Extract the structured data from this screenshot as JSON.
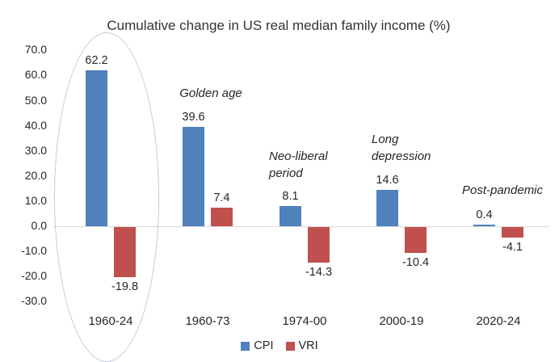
{
  "chart_data": {
    "type": "bar",
    "title": "Cumulative change in US real median family income (%)",
    "categories": [
      "1960-24",
      "1960-73",
      "1974-00",
      "2000-19",
      "2020-24"
    ],
    "series": [
      {
        "name": "CPI",
        "color": "#4F81BD",
        "values": [
          62.2,
          39.6,
          8.1,
          14.6,
          0.4
        ]
      },
      {
        "name": "VRI",
        "color": "#C0504D",
        "values": [
          -19.8,
          7.4,
          -14.3,
          -10.4,
          -4.1
        ]
      }
    ],
    "yticks": [
      "70.0",
      "60.0",
      "50.0",
      "40.0",
      "30.0",
      "20.0",
      "10.0",
      "0.0",
      "-10.0",
      "-20.0",
      "-30.0"
    ],
    "ylim": [
      -30,
      70
    ],
    "gridlines": "zero-line-only",
    "gridline_color": "#D9D9D9",
    "annotations": [
      {
        "category": "1960-73",
        "lines": [
          "Golden age"
        ]
      },
      {
        "category": "1974-00",
        "lines": [
          "Neo-liberal",
          "period"
        ]
      },
      {
        "category": "2000-19",
        "lines": [
          "Long",
          "depression"
        ]
      },
      {
        "category": "2020-24",
        "lines": [
          "Post-pandemic"
        ]
      }
    ],
    "highlight_ellipse": {
      "category": "1960-24",
      "color": "#8096b8"
    },
    "legend_position": "bottom-center"
  }
}
